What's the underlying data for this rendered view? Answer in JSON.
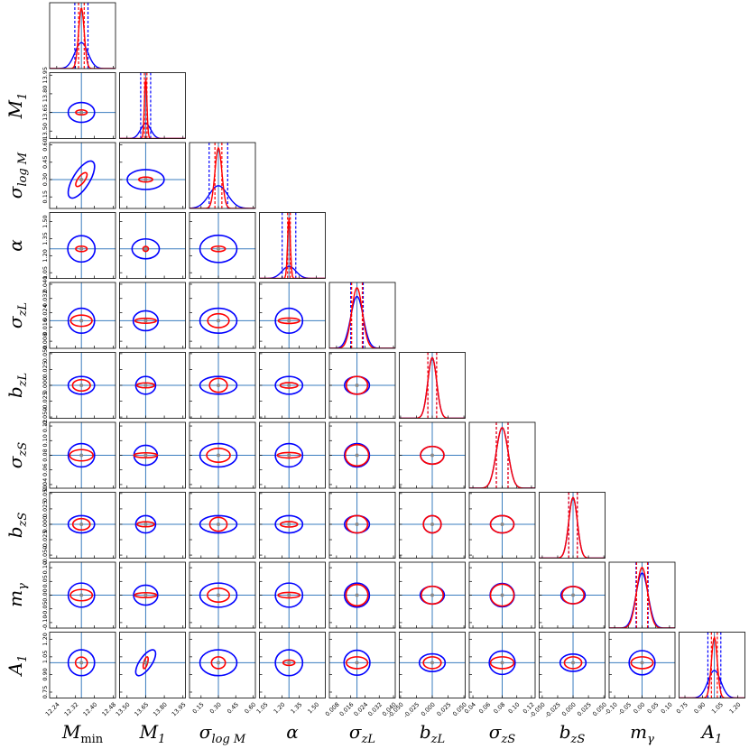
{
  "chart_data": {
    "type": "corner",
    "truth_color": "#3a7dbf",
    "parameters": [
      {
        "symbol": "M",
        "sub": "min",
        "lim": [
          12.21,
          12.49
        ],
        "ticks": [
          12.24,
          12.32,
          {
            "value": 12.4,
            "label": "12.40"
          },
          12.48
        ],
        "truth": 12.345
      },
      {
        "symbol": "M",
        "sub": "1",
        "lim": [
          13.44,
          13.97
        ],
        "ticks": [
          {
            "value": 13.5,
            "label": "13.50"
          },
          13.65,
          {
            "value": 13.8,
            "label": "13.80"
          },
          13.95
        ],
        "truth": 13.65
      },
      {
        "symbol": "σ",
        "sub": "log M",
        "lim": [
          0.05,
          0.62
        ],
        "ticks": [
          0.15,
          {
            "value": 0.3,
            "label": "0.30"
          },
          0.45,
          {
            "value": 0.6,
            "label": "0.60"
          }
        ],
        "truth": 0.3
      },
      {
        "symbol": "α",
        "sub": "",
        "lim": [
          1.0,
          1.58
        ],
        "ticks": [
          1.05,
          {
            "value": 1.2,
            "label": "1.20"
          },
          1.35,
          {
            "value": 1.5,
            "label": "1.50"
          }
        ],
        "truth": 1.26
      },
      {
        "symbol": "σ",
        "sub": "zL",
        "lim": [
          0.004,
          0.041
        ],
        "ticks": [
          0.008,
          0.016,
          0.024,
          0.032,
          {
            "value": 0.04,
            "label": "0.040"
          }
        ],
        "truth": 0.0195
      },
      {
        "symbol": "b",
        "sub": "zL",
        "lim": [
          -0.052,
          0.052
        ],
        "ticks": [
          {
            "value": -0.05,
            "label": "-0.050"
          },
          -0.025,
          {
            "value": 0,
            "label": "0.000"
          },
          0.025,
          {
            "value": 0.05,
            "label": "0.050"
          }
        ],
        "truth": 0
      },
      {
        "symbol": "σ",
        "sub": "zS",
        "lim": [
          0.035,
          0.125
        ],
        "ticks": [
          0.04,
          0.06,
          0.08,
          {
            "value": 0.1,
            "label": "0.10"
          },
          0.12
        ],
        "truth": 0.08
      },
      {
        "symbol": "b",
        "sub": "zS",
        "lim": [
          -0.055,
          0.052
        ],
        "ticks": [
          {
            "value": -0.05,
            "label": "-0.050"
          },
          -0.025,
          {
            "value": 0,
            "label": "0.000"
          },
          0.025,
          {
            "value": 0.05,
            "label": "0.050"
          }
        ],
        "truth": 0
      },
      {
        "symbol": "m",
        "sub": "γ",
        "lim": [
          -0.12,
          0.12
        ],
        "ticks": [
          {
            "value": -0.1,
            "label": "-0.10"
          },
          -0.05,
          {
            "value": 0,
            "label": "0.00"
          },
          0.05,
          {
            "value": 0.1,
            "label": "0.10"
          }
        ],
        "truth": 0
      },
      {
        "symbol": "A",
        "sub": "1",
        "lim": [
          0.7,
          1.26
        ],
        "ticks": [
          0.75,
          {
            "value": 0.9,
            "label": "0.90"
          },
          1.05,
          {
            "value": 1.2,
            "label": "1.20"
          }
        ],
        "truth": 1.0
      }
    ],
    "fits": [
      {
        "color": "#0000ff",
        "means": [
          12.345,
          13.65,
          0.3,
          1.26,
          0.0195,
          0,
          0.08,
          0,
          0,
          1.0
        ],
        "sigmas": [
          0.028,
          0.04,
          0.08,
          0.06,
          0.0035,
          0.007,
          0.008,
          0.007,
          0.022,
          0.055
        ]
      },
      {
        "color": "#ff0000",
        "means": [
          12.345,
          13.65,
          0.3,
          1.26,
          0.0195,
          0,
          0.08,
          0,
          0,
          1.0
        ],
        "sigmas": [
          0.012,
          0.01,
          0.03,
          0.012,
          0.003,
          0.007,
          0.008,
          0.007,
          0.02,
          0.025
        ]
      }
    ],
    "correlations": [
      {
        "pair": [
          0,
          2
        ],
        "values": [
          0.7,
          0.7
        ]
      },
      {
        "pair": [
          1,
          9
        ],
        "values": [
          0.7,
          0.6
        ]
      }
    ]
  }
}
